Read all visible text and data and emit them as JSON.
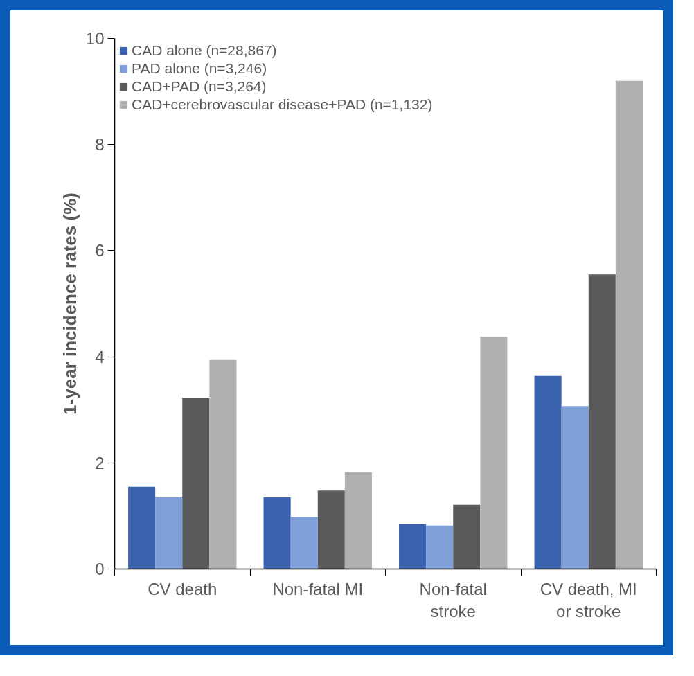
{
  "chart_data": {
    "type": "bar",
    "ylabel": "1-year incidence rates (%)",
    "categories": [
      "CV death",
      "Non-fatal MI",
      "Non-fatal stroke",
      "CV death, MI or stroke"
    ],
    "series": [
      {
        "name": "CAD alone (n=28,867)",
        "color": "#3a62ae",
        "values": [
          1.55,
          1.35,
          0.85,
          3.64
        ]
      },
      {
        "name": "PAD alone (n=3,246)",
        "color": "#7f9fd8",
        "values": [
          1.35,
          0.98,
          0.82,
          3.07
        ]
      },
      {
        "name": "CAD+PAD (n=3,264)",
        "color": "#5a5a5c",
        "values": [
          3.23,
          1.48,
          1.21,
          5.55
        ]
      },
      {
        "name": "CAD+cerebrovascular disease+PAD (n=1,132)",
        "color": "#b0b0b2",
        "values": [
          3.94,
          1.82,
          4.38,
          9.2
        ]
      }
    ],
    "ylim": [
      0,
      10
    ],
    "yticks": [
      0,
      2,
      4,
      6,
      8,
      10
    ],
    "grid": false,
    "legend": "top left"
  }
}
